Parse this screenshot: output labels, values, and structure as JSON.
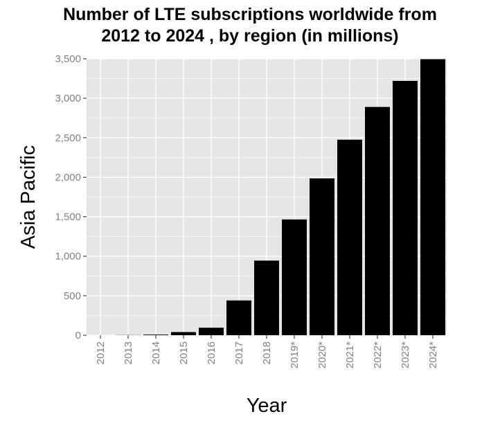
{
  "chart_data": {
    "type": "bar",
    "title_lines": [
      "Number of LTE subscriptions worldwide from",
      "2012 to 2024 , by region (in millions)"
    ],
    "xlabel": "Year",
    "ylabel": "Asia Pacific",
    "categories": [
      "2012",
      "2013",
      "2014",
      "2015",
      "2016",
      "2017",
      "2018",
      "2019*",
      "2020*",
      "2021*",
      "2022*",
      "2023*",
      "2024*"
    ],
    "values": [
      0,
      2,
      8,
      40,
      95,
      440,
      945,
      1465,
      1985,
      2475,
      2890,
      3220,
      3495
    ],
    "ylim": [
      0,
      3500
    ],
    "yticks": [
      0,
      500,
      1000,
      1500,
      2000,
      2500,
      3000,
      3500
    ],
    "ytick_labels": [
      "0",
      "500",
      "1,000",
      "1,500",
      "2,000",
      "2,500",
      "3,000",
      "3,500"
    ],
    "grid": true,
    "bar_color": "#000000",
    "panel_color": "#e5e5e5",
    "grid_color": "#ffffff"
  }
}
